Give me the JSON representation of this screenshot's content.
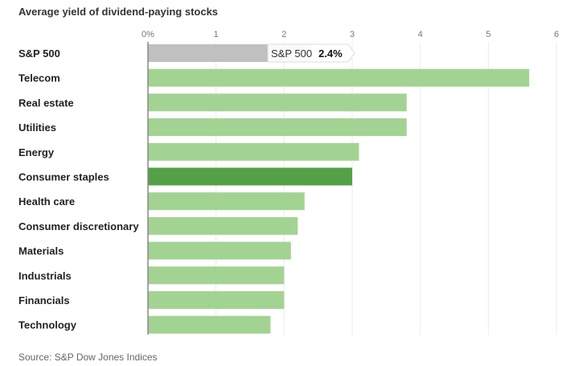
{
  "chart_data": {
    "type": "bar",
    "orientation": "horizontal",
    "title": "Average yield of dividend-paying stocks",
    "source": "Source: S&P Dow Jones Indices",
    "categories": [
      "S&P 500",
      "Telecom",
      "Real estate",
      "Utilities",
      "Energy",
      "Consumer staples",
      "Health care",
      "Consumer discretionary",
      "Materials",
      "Industrials",
      "Financials",
      "Technology"
    ],
    "values": [
      2.4,
      5.6,
      3.8,
      3.8,
      3.1,
      3.0,
      2.3,
      2.2,
      2.1,
      2.0,
      2.0,
      1.8
    ],
    "unit": "%",
    "xlim": [
      0,
      6
    ],
    "x_ticks": [
      "0%",
      "1",
      "2",
      "3",
      "4",
      "5",
      "6"
    ],
    "grid": true,
    "colors": {
      "benchmark": "#c0c0c0",
      "default": "#a3d393",
      "highlight": "#54a046"
    },
    "highlight": "Consumer staples",
    "tooltip": {
      "label": "S&P 500",
      "value": "2.4%"
    }
  }
}
